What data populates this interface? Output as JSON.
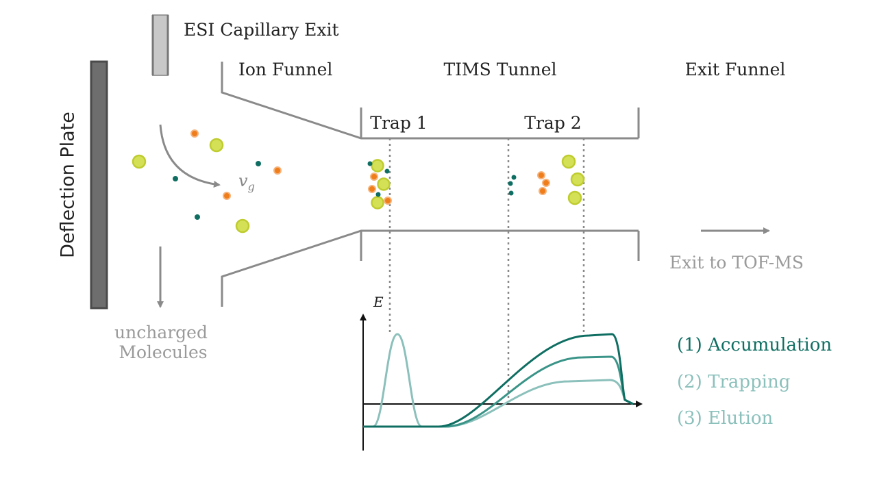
{
  "labels": {
    "esi_capillary": "ESI Capillary Exit",
    "ion_funnel": "Ion Funnel",
    "tims_tunnel": "TIMS Tunnel",
    "exit_funnel": "Exit Funnel",
    "trap1": "Trap 1",
    "trap2": "Trap 2",
    "deflection_plate": "Deflection Plate",
    "gas_velocity": "v",
    "gas_velocity_sub": "g",
    "uncharged_line1": "uncharged",
    "uncharged_line2": "Molecules",
    "exit_tof": "Exit to TOF-MS",
    "energy_axis": "E"
  },
  "legend": [
    {
      "label": "(1) Accumulation",
      "color": "#0f6e62"
    },
    {
      "label": "(2) Trapping",
      "color": "#3a9488"
    },
    {
      "label": "(3) Elution",
      "color": "#8bc0bb"
    }
  ],
  "colors": {
    "structure": "#8a8a8a",
    "plate": "#6e6e6e",
    "ion_large": "#d4e157",
    "ion_medium": "#ef7d1a",
    "ion_small": "#0f6e62",
    "text": "#222222",
    "grey_text": "#9a9a9a"
  }
}
